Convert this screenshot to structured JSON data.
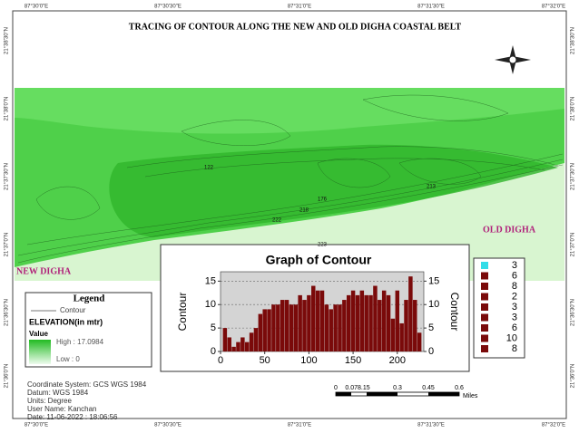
{
  "title": "TRACING OF CONTOUR ALONG THE NEW AND OLD DIGHA COASTAL BELT",
  "map": {
    "top_coords": [
      "87°30'0\"E",
      "87°30'30\"E",
      "87°31'0\"E",
      "87°31'30\"E",
      "87°32'0\"E"
    ],
    "left_coords": [
      "21°38'30\"N",
      "21°38'0\"N",
      "21°37'30\"N",
      "21°37'0\"N",
      "21°36'30\"N",
      "21°36'0\"N"
    ],
    "place_labels": [
      "NEW DIGHA",
      "OLD DIGHA"
    ],
    "contour_labels": [
      "122",
      "222",
      "223",
      "218",
      "176",
      "213"
    ]
  },
  "legend": {
    "title": "Legend",
    "contour": "Contour",
    "elevation": "ELEVATION(in mtr)",
    "value": "Value",
    "high": "High : 17.0984",
    "low": "Low : 0"
  },
  "info": [
    "Coordinate System: GCS WGS 1984",
    "Datum: WGS 1984",
    "Units: Degree",
    "User Name: Kanchan",
    "Date: 11-06-2022 : 18:06:56"
  ],
  "scale_bar": {
    "labels": [
      "0",
      "0.078.15",
      "0.3",
      "0.45",
      "0.6"
    ],
    "unit": "Miles"
  },
  "chart_data": {
    "type": "bar",
    "title": "Graph of Contour",
    "ylabel": "Contour",
    "y2label": "Contour",
    "x": [
      5,
      10,
      15,
      20,
      25,
      30,
      35,
      40,
      45,
      50,
      55,
      60,
      65,
      70,
      75,
      80,
      85,
      90,
      95,
      100,
      105,
      110,
      115,
      120,
      125,
      130,
      135,
      140,
      145,
      150,
      155,
      160,
      165,
      170,
      175,
      180,
      185,
      190,
      195,
      200,
      205,
      210,
      215,
      220,
      225
    ],
    "values": [
      5,
      3,
      1,
      2,
      3,
      2,
      4,
      5,
      8,
      9,
      9,
      10,
      10,
      11,
      11,
      10,
      10,
      12,
      11,
      12,
      14,
      13,
      13,
      10,
      9,
      10,
      10,
      11,
      12,
      13,
      12,
      13,
      12,
      12,
      14,
      11,
      13,
      12,
      7,
      13,
      6,
      11,
      16,
      11,
      4
    ],
    "color": "#7a0a0a",
    "xlim": [
      0,
      230
    ],
    "ylim": [
      0,
      17
    ],
    "y2lim": [
      0,
      17
    ],
    "xticks": [
      0,
      50,
      100,
      150,
      200
    ],
    "yticks": [
      0,
      5,
      10,
      15
    ],
    "y2ticks": [
      0,
      5,
      10,
      15
    ],
    "grid": true,
    "legend_entries": [
      {
        "label": 3,
        "color": "#33dde8"
      },
      {
        "label": 6,
        "color": "#7a0a0a"
      },
      {
        "label": 8,
        "color": "#7a0a0a"
      },
      {
        "label": 2,
        "color": "#7a0a0a"
      },
      {
        "label": 3,
        "color": "#7a0a0a"
      },
      {
        "label": 3,
        "color": "#7a0a0a"
      },
      {
        "label": 6,
        "color": "#7a0a0a"
      },
      {
        "label": 10,
        "color": "#7a0a0a"
      },
      {
        "label": 8,
        "color": "#7a0a0a"
      }
    ]
  }
}
